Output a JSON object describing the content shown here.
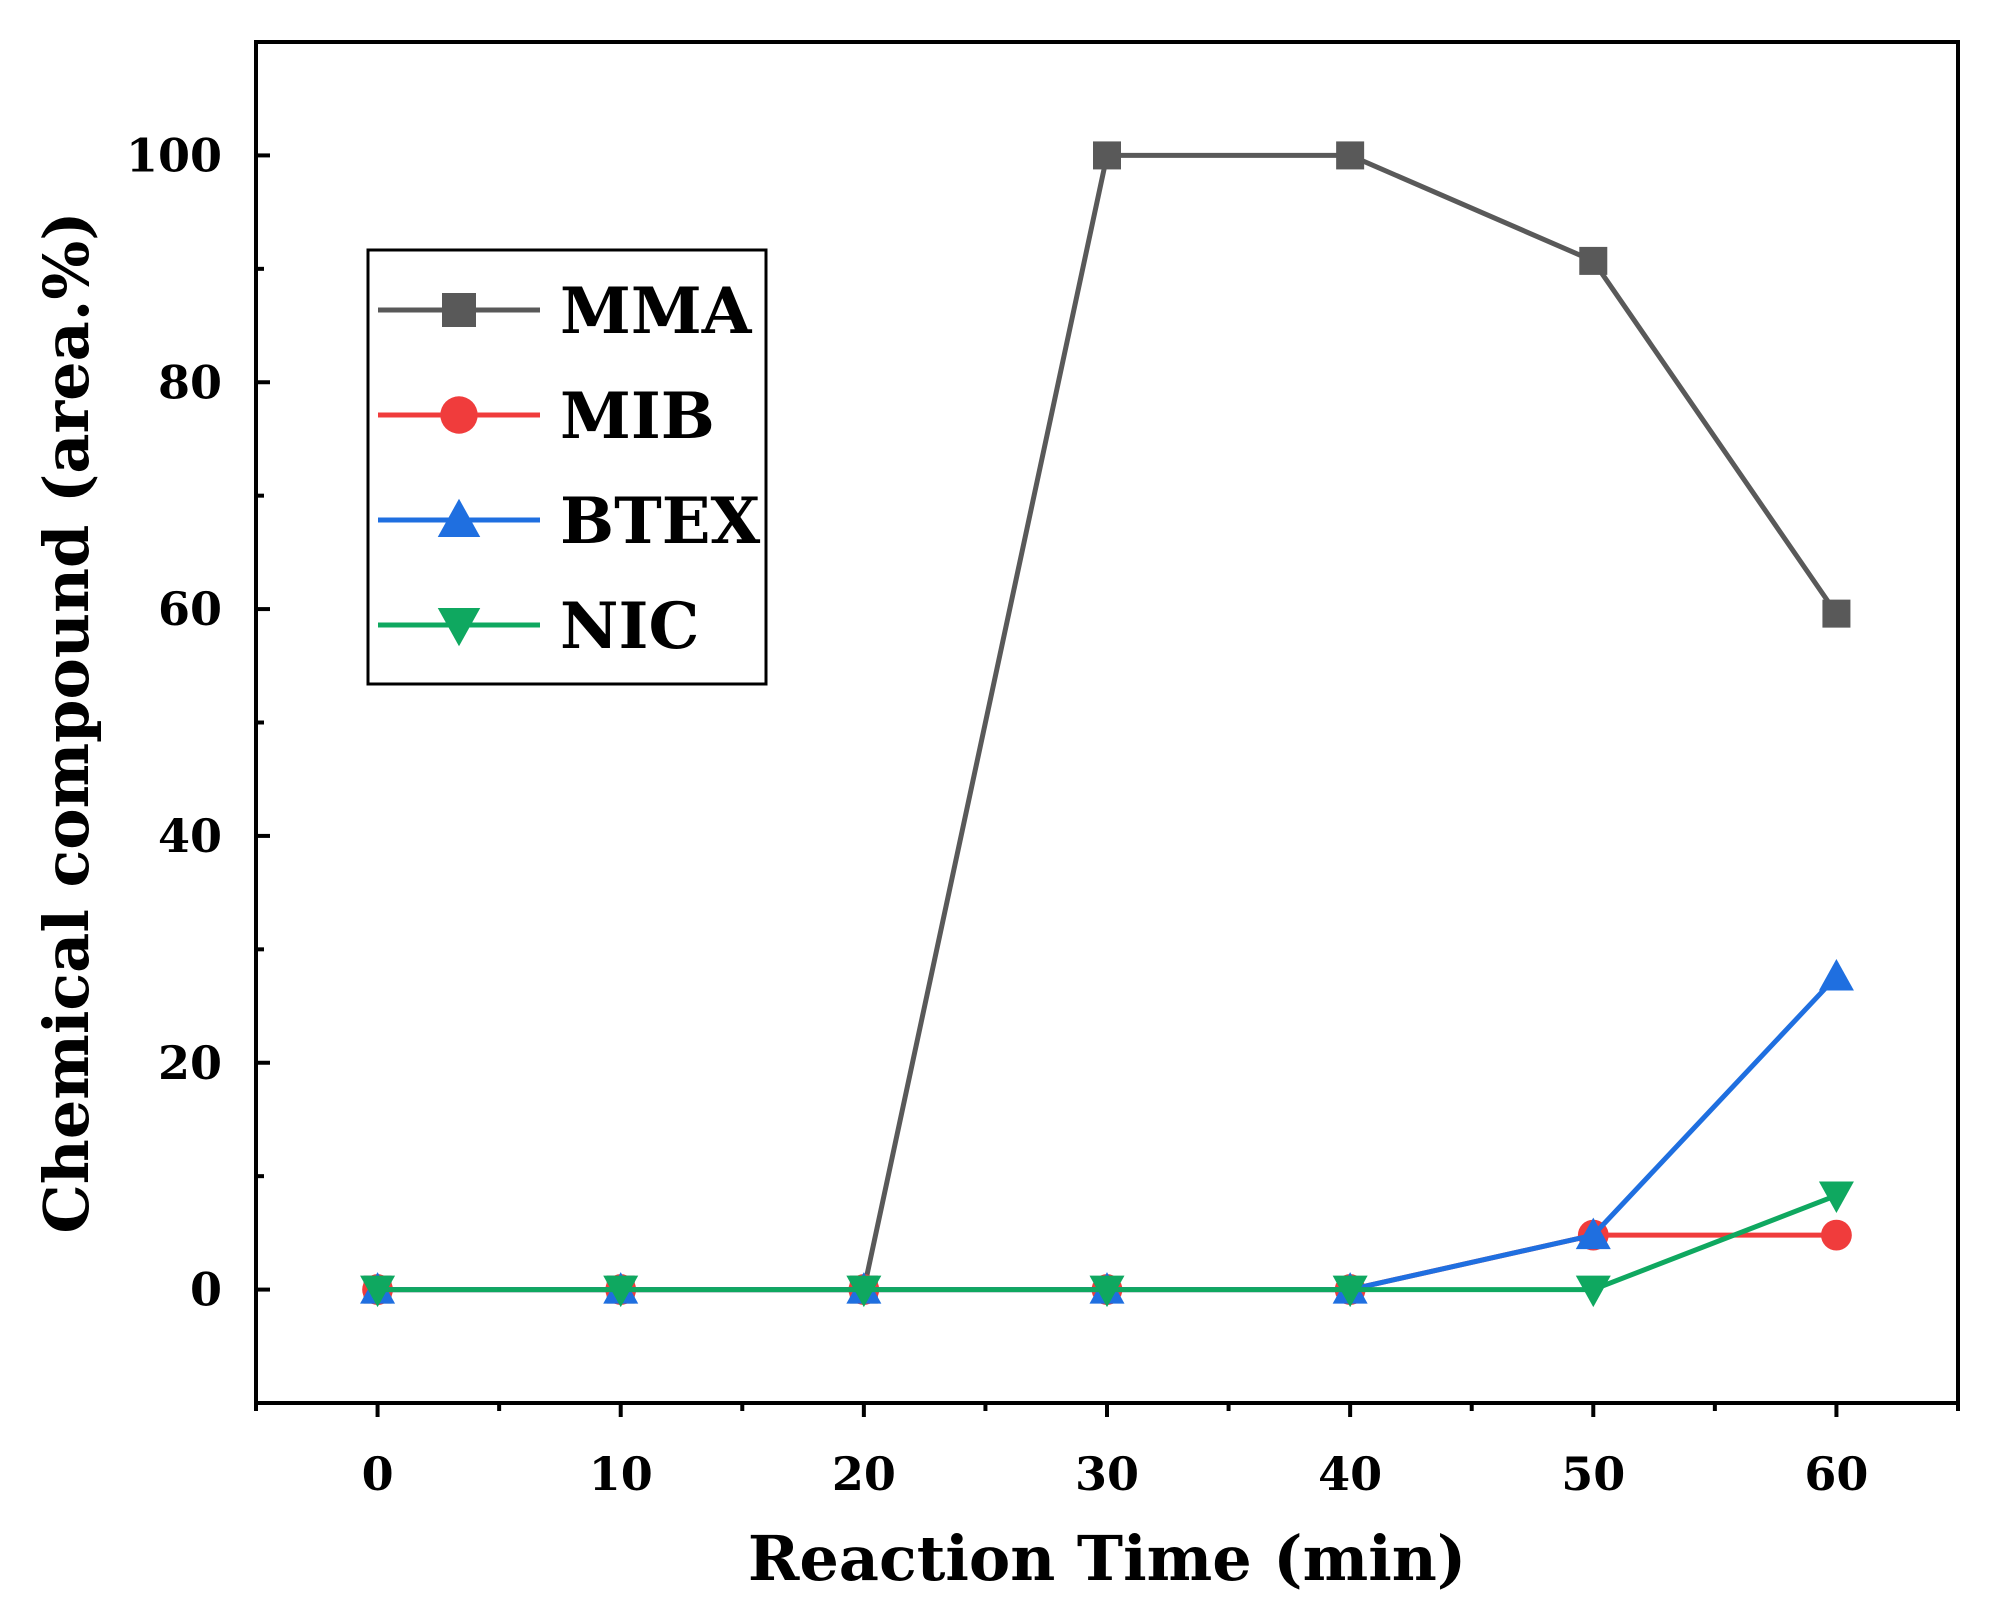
{
  "chart_data": {
    "type": "line",
    "xlabel": "Reaction Time (min)",
    "ylabel": "Chemical compound (area.%)",
    "xlim": [
      -5,
      65
    ],
    "ylim": [
      -10,
      110
    ],
    "xticks": [
      0,
      10,
      20,
      30,
      40,
      50,
      60
    ],
    "yticks": [
      0,
      20,
      40,
      60,
      80,
      100
    ],
    "x": [
      0,
      10,
      20,
      30,
      40,
      50,
      60
    ],
    "legend_position": "upper-left",
    "series": [
      {
        "name": "MMA",
        "marker": "square",
        "color": "#595959",
        "values": [
          0,
          0,
          0,
          100,
          100,
          90.7,
          59.6
        ]
      },
      {
        "name": "MIB",
        "marker": "circle",
        "color": "#f03c3c",
        "values": [
          0,
          0,
          0,
          0,
          0,
          4.8,
          4.8
        ]
      },
      {
        "name": "BTEX",
        "marker": "triangle-up",
        "color": "#1f6fe0",
        "values": [
          0,
          0,
          0,
          0,
          0,
          4.8,
          27.6
        ]
      },
      {
        "name": "NIC",
        "marker": "triangle-down",
        "color": "#0fa860",
        "values": [
          0,
          0,
          0,
          0,
          0,
          0,
          8.3
        ]
      }
    ]
  }
}
